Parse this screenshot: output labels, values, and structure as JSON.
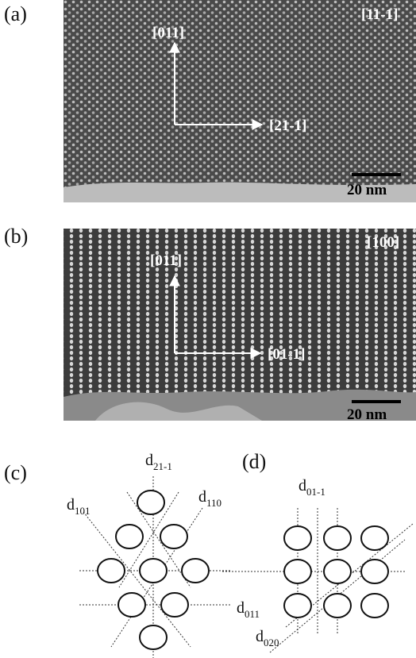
{
  "panels": [
    {
      "label": "(a)",
      "zone_axis": "[11-1]",
      "vertical_direction": "[011]",
      "horizontal_direction": "[21-1]",
      "scale_bar": "20 nm"
    },
    {
      "label": "(b)",
      "zone_axis": "[100]",
      "vertical_direction": "[011]",
      "horizontal_direction": "[01-1]",
      "scale_bar": "20 nm"
    },
    {
      "label": "(c)",
      "spacings": [
        {
          "base": "d",
          "sub": "21-1"
        },
        {
          "base": "d",
          "sub": "101"
        },
        {
          "base": "d",
          "sub": "110"
        }
      ]
    },
    {
      "label": "(d)",
      "spacings": [
        {
          "base": "d",
          "sub": "01-1"
        },
        {
          "base": "d",
          "sub": "011"
        },
        {
          "base": "d",
          "sub": "020"
        }
      ]
    }
  ]
}
